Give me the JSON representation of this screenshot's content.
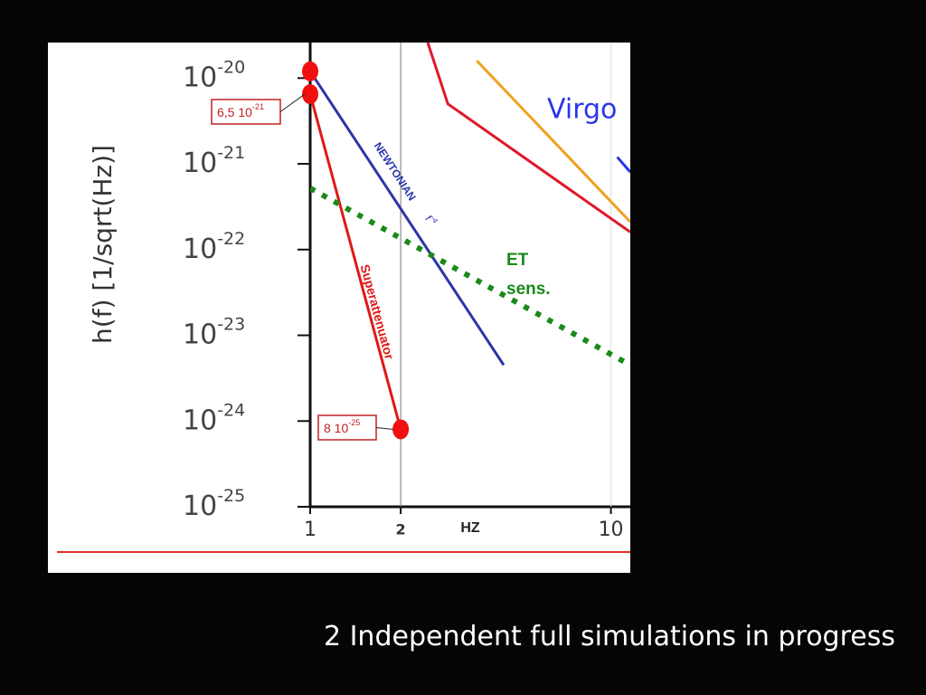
{
  "chart_data": {
    "type": "line",
    "ylabel": "h(f) [1/sqrt(Hz)]",
    "xlabel": "HZ",
    "xscale": "log",
    "yscale": "log",
    "xlim": [
      1,
      11.6
    ],
    "ylim": [
      1e-25,
      2.6e-20
    ],
    "xticks": [
      {
        "value": 1,
        "label": "1"
      },
      {
        "value": 2,
        "label": "2"
      },
      {
        "value": 10,
        "label": "10"
      }
    ],
    "yticks": [
      {
        "value": 1e-20,
        "label": "10",
        "exponent": "-20"
      },
      {
        "value": 1e-21,
        "label": "10",
        "exponent": "-21"
      },
      {
        "value": 1e-22,
        "label": "10",
        "exponent": "-22"
      },
      {
        "value": 1e-23,
        "label": "10",
        "exponent": "-23"
      },
      {
        "value": 1e-24,
        "label": "10",
        "exponent": "-24"
      },
      {
        "value": 1e-25,
        "label": "10",
        "exponent": "-25"
      }
    ],
    "xgrid": true,
    "series": [
      {
        "name": "NEWTONIAN",
        "name_exponent": "-4",
        "name_suffix": "f",
        "color": "#2a36a8",
        "x": [
          1,
          4.4
        ],
        "values": [
          1.2e-20,
          4.5e-24
        ],
        "markers": [
          true,
          false
        ]
      },
      {
        "name": "Superattenuator",
        "color": "#e01818",
        "x": [
          1,
          2
        ],
        "values": [
          6.5e-21,
          8e-25
        ],
        "markers": [
          true,
          true
        ]
      },
      {
        "name": "ET sens.",
        "color": "#1a8a1a",
        "dotted": true,
        "x": [
          1,
          11.6
        ],
        "values": [
          5.2e-22,
          4.5e-24
        ],
        "markers": [
          false,
          false
        ]
      },
      {
        "name": "Virgo",
        "color": "#2a36e8",
        "x": [
          10.5,
          11.6
        ],
        "values": [
          1.2e-21,
          8e-22
        ],
        "markers": [
          false,
          false
        ]
      },
      {
        "color": "#f0a020",
        "x": [
          3.58,
          11.6
        ],
        "values": [
          1.6e-20,
          2.1e-22
        ],
        "markers": [
          false,
          false
        ]
      },
      {
        "color": "#e01828",
        "x": [
          2.46,
          2.87,
          11.6
        ],
        "values": [
          2.6e-20,
          5e-21,
          1.6e-22
        ],
        "markers": [
          false,
          false,
          false
        ]
      }
    ],
    "annotations": [
      {
        "text": "6,5 10",
        "exponent": "-21"
      },
      {
        "text": "8 10",
        "exponent": "-25"
      }
    ]
  },
  "caption": "2 Independent full simulations in progress"
}
